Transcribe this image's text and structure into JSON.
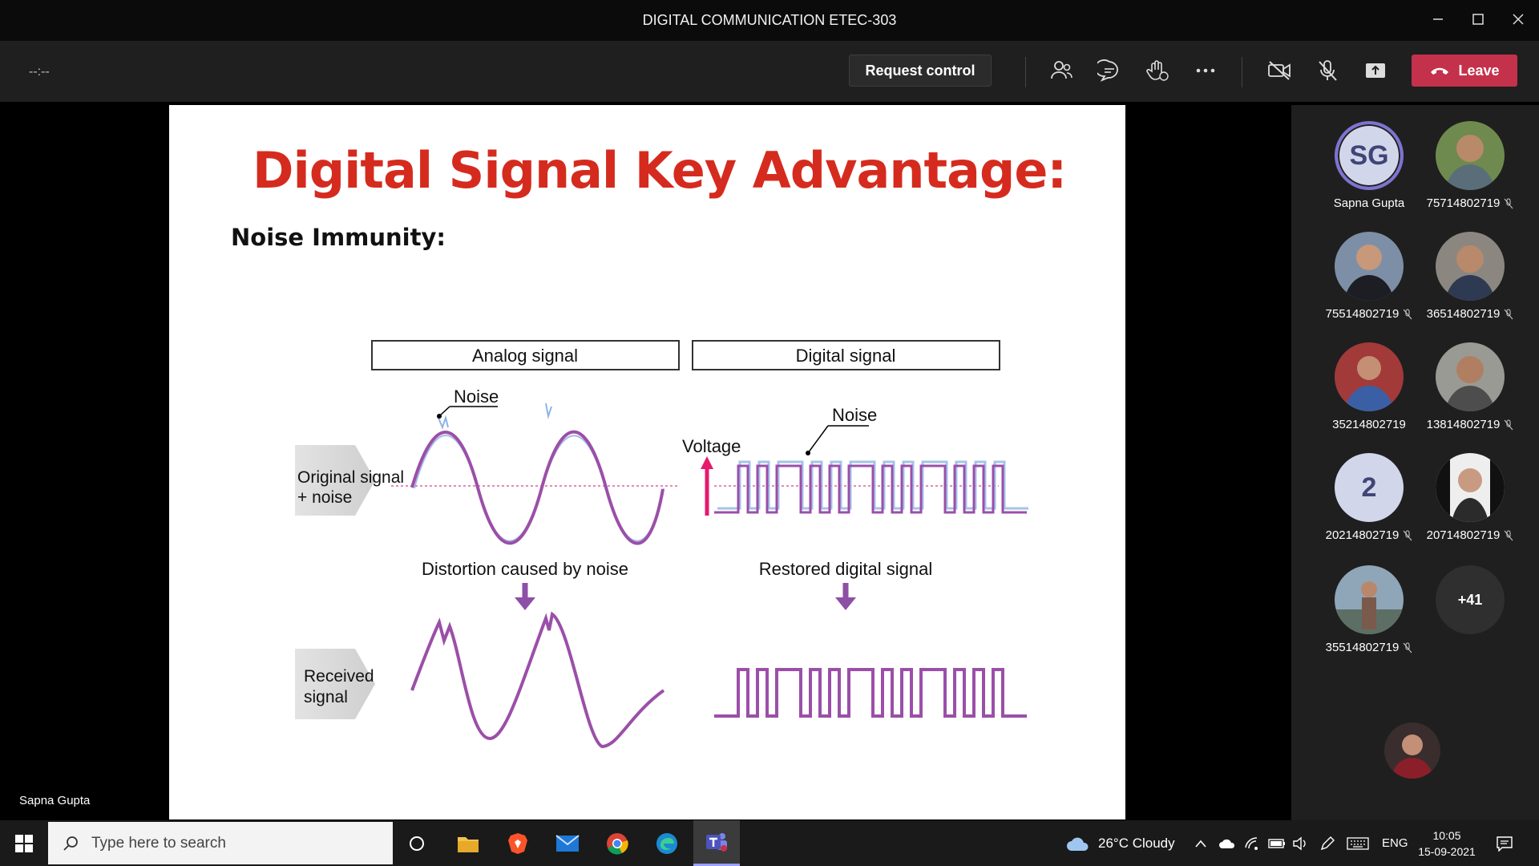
{
  "window": {
    "title": "DIGITAL COMMUNICATION ETEC-303"
  },
  "toolbar": {
    "timer": "--:--",
    "request_control": "Request control",
    "leave_label": "Leave"
  },
  "slide": {
    "title": "Digital Signal Key Advantage:",
    "subtitle": "Noise Immunity:",
    "analog_header": "Analog signal",
    "digital_header": "Digital signal",
    "noise_label_left": "Noise",
    "noise_label_right": "Noise",
    "voltage_label": "Voltage",
    "row1_label_line1": "Original signal",
    "row1_label_line2": "+ noise",
    "row2_label_line1": "Received",
    "row2_label_line2": "signal",
    "distortion_label": "Distortion caused by noise",
    "restored_label": "Restored digital signal"
  },
  "presenter_name": "Sapna Gupta",
  "participants": [
    {
      "name": "Sapna Gupta",
      "initials": "SG",
      "muted": false
    },
    {
      "name": "75714802719",
      "muted": true
    },
    {
      "name": "75514802719",
      "muted": true
    },
    {
      "name": "36514802719",
      "muted": true
    },
    {
      "name": "35214802719",
      "muted": false
    },
    {
      "name": "13814802719",
      "muted": true
    },
    {
      "name": "20214802719",
      "initials": "2",
      "muted": true
    },
    {
      "name": "20714802719",
      "muted": true
    },
    {
      "name": "35514802719",
      "muted": true
    }
  ],
  "more_participants": "+41",
  "taskbar": {
    "search_placeholder": "Type here to search",
    "weather": "26°C  Cloudy",
    "language": "ENG",
    "time": "10:05",
    "date": "15-09-2021"
  },
  "colors": {
    "accent": "#6264a7",
    "leave": "#c4314b",
    "slide_title": "#d52b1e",
    "signal_purple": "#9b4fa8",
    "signal_blue": "#6b8fd6",
    "voltage_arrow": "#e6196e"
  }
}
